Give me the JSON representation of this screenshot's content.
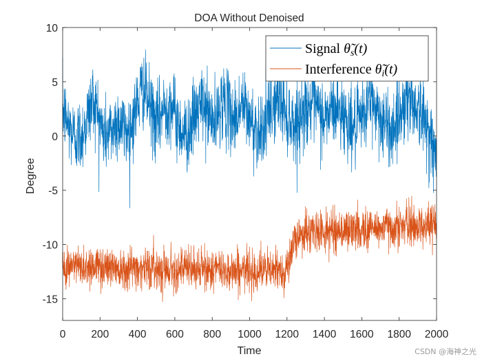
{
  "chart_data": {
    "type": "line",
    "title": "DOA Without Denoised",
    "xlabel": "Time",
    "ylabel": "Degree",
    "xlim": [
      0,
      2000
    ],
    "ylim": [
      -17,
      10
    ],
    "xticks": [
      0,
      200,
      400,
      600,
      800,
      1000,
      1200,
      1400,
      1600,
      1800,
      2000
    ],
    "yticks": [
      10,
      5,
      0,
      -5,
      -10,
      -15
    ],
    "legend_position": "top-right",
    "series": [
      {
        "name_prefix": "Signal ",
        "name_symbol": "θ̃",
        "name_subscript": "s",
        "name_suffix": "(t)",
        "color": "#0072BD",
        "n_points": 2000,
        "baseline_profile": [
          [
            0,
            2.5
          ],
          [
            30,
            1.0
          ],
          [
            60,
            0.0
          ],
          [
            100,
            0.0
          ],
          [
            130,
            1.5
          ],
          [
            160,
            3.5
          ],
          [
            190,
            2.0
          ],
          [
            220,
            0.0
          ],
          [
            260,
            0.5
          ],
          [
            300,
            1.5
          ],
          [
            330,
            0.5
          ],
          [
            360,
            0.5
          ],
          [
            400,
            3.0
          ],
          [
            430,
            4.5
          ],
          [
            460,
            3.0
          ],
          [
            500,
            1.0
          ],
          [
            540,
            2.5
          ],
          [
            580,
            3.0
          ],
          [
            620,
            1.0
          ],
          [
            660,
            0.0
          ],
          [
            700,
            1.5
          ],
          [
            740,
            3.0
          ],
          [
            780,
            2.0
          ],
          [
            820,
            1.0
          ],
          [
            850,
            3.5
          ],
          [
            880,
            2.5
          ],
          [
            920,
            1.5
          ],
          [
            960,
            3.0
          ],
          [
            1000,
            1.5
          ],
          [
            1040,
            0.5
          ],
          [
            1080,
            1.0
          ],
          [
            1120,
            2.5
          ],
          [
            1160,
            3.5
          ],
          [
            1200,
            2.0
          ],
          [
            1240,
            1.0
          ],
          [
            1280,
            2.0
          ],
          [
            1320,
            3.0
          ],
          [
            1360,
            2.5
          ],
          [
            1400,
            1.5
          ],
          [
            1440,
            2.5
          ],
          [
            1480,
            2.5
          ],
          [
            1520,
            1.5
          ],
          [
            1560,
            0.5
          ],
          [
            1600,
            1.5
          ],
          [
            1640,
            3.5
          ],
          [
            1680,
            2.5
          ],
          [
            1720,
            1.0
          ],
          [
            1760,
            0.5
          ],
          [
            1800,
            2.0
          ],
          [
            1840,
            3.5
          ],
          [
            1880,
            3.0
          ],
          [
            1920,
            2.0
          ],
          [
            1960,
            0.5
          ],
          [
            2000,
            -2.5
          ]
        ],
        "noise_sd": 1.7,
        "range_observed": [
          -7.3,
          9.9
        ]
      },
      {
        "name_prefix": "Interference ",
        "name_symbol": "θ̃",
        "name_subscript": "i",
        "name_suffix": "(t)",
        "color": "#D95319",
        "n_points": 2000,
        "baseline_profile": [
          [
            0,
            -12.0
          ],
          [
            200,
            -12.0
          ],
          [
            500,
            -12.2
          ],
          [
            800,
            -12.3
          ],
          [
            1000,
            -12.4
          ],
          [
            1190,
            -12.4
          ],
          [
            1260,
            -9.0
          ],
          [
            1400,
            -8.8
          ],
          [
            1600,
            -8.6
          ],
          [
            1800,
            -8.3
          ],
          [
            2000,
            -8.2
          ]
        ],
        "noise_sd": 0.95,
        "range_observed": [
          -15.9,
          -5.3
        ]
      }
    ]
  },
  "watermark": "CSDN @海神之光"
}
